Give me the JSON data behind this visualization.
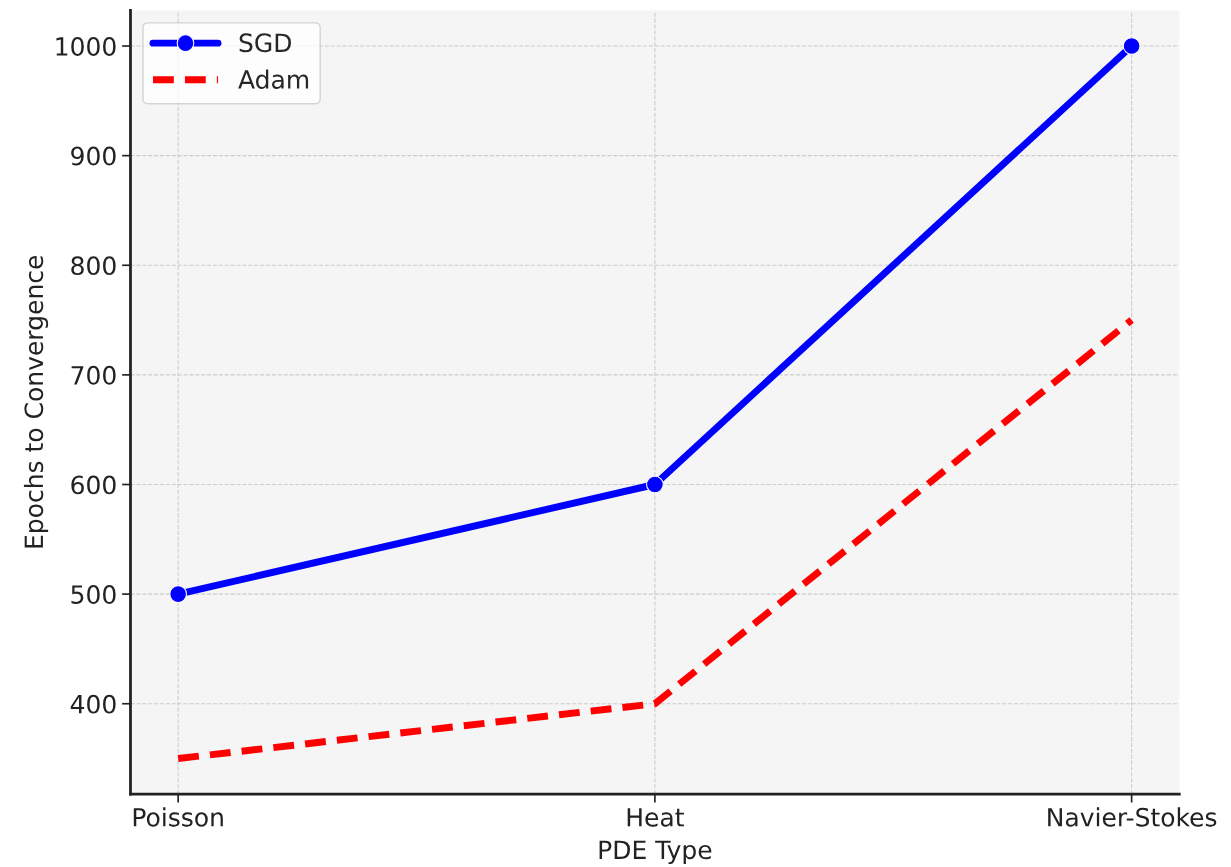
{
  "chart_data": {
    "type": "line",
    "xlabel": "PDE Type",
    "ylabel": "Epochs to Convergence",
    "categories": [
      "Poisson",
      "Heat",
      "Navier-Stokes"
    ],
    "series": [
      {
        "name": "SGD",
        "color": "#0000ff",
        "values": [
          500,
          600,
          1000
        ],
        "marker": "circle",
        "line_style": "solid"
      },
      {
        "name": "Adam",
        "color": "#ff0000",
        "values": [
          350,
          400,
          750
        ],
        "marker": "none",
        "line_style": "dashed"
      }
    ],
    "ylim": [
      317.5,
      1032.5
    ],
    "yticks": [
      400,
      500,
      600,
      700,
      800,
      900,
      1000
    ],
    "grid": true,
    "legend": "top left"
  }
}
